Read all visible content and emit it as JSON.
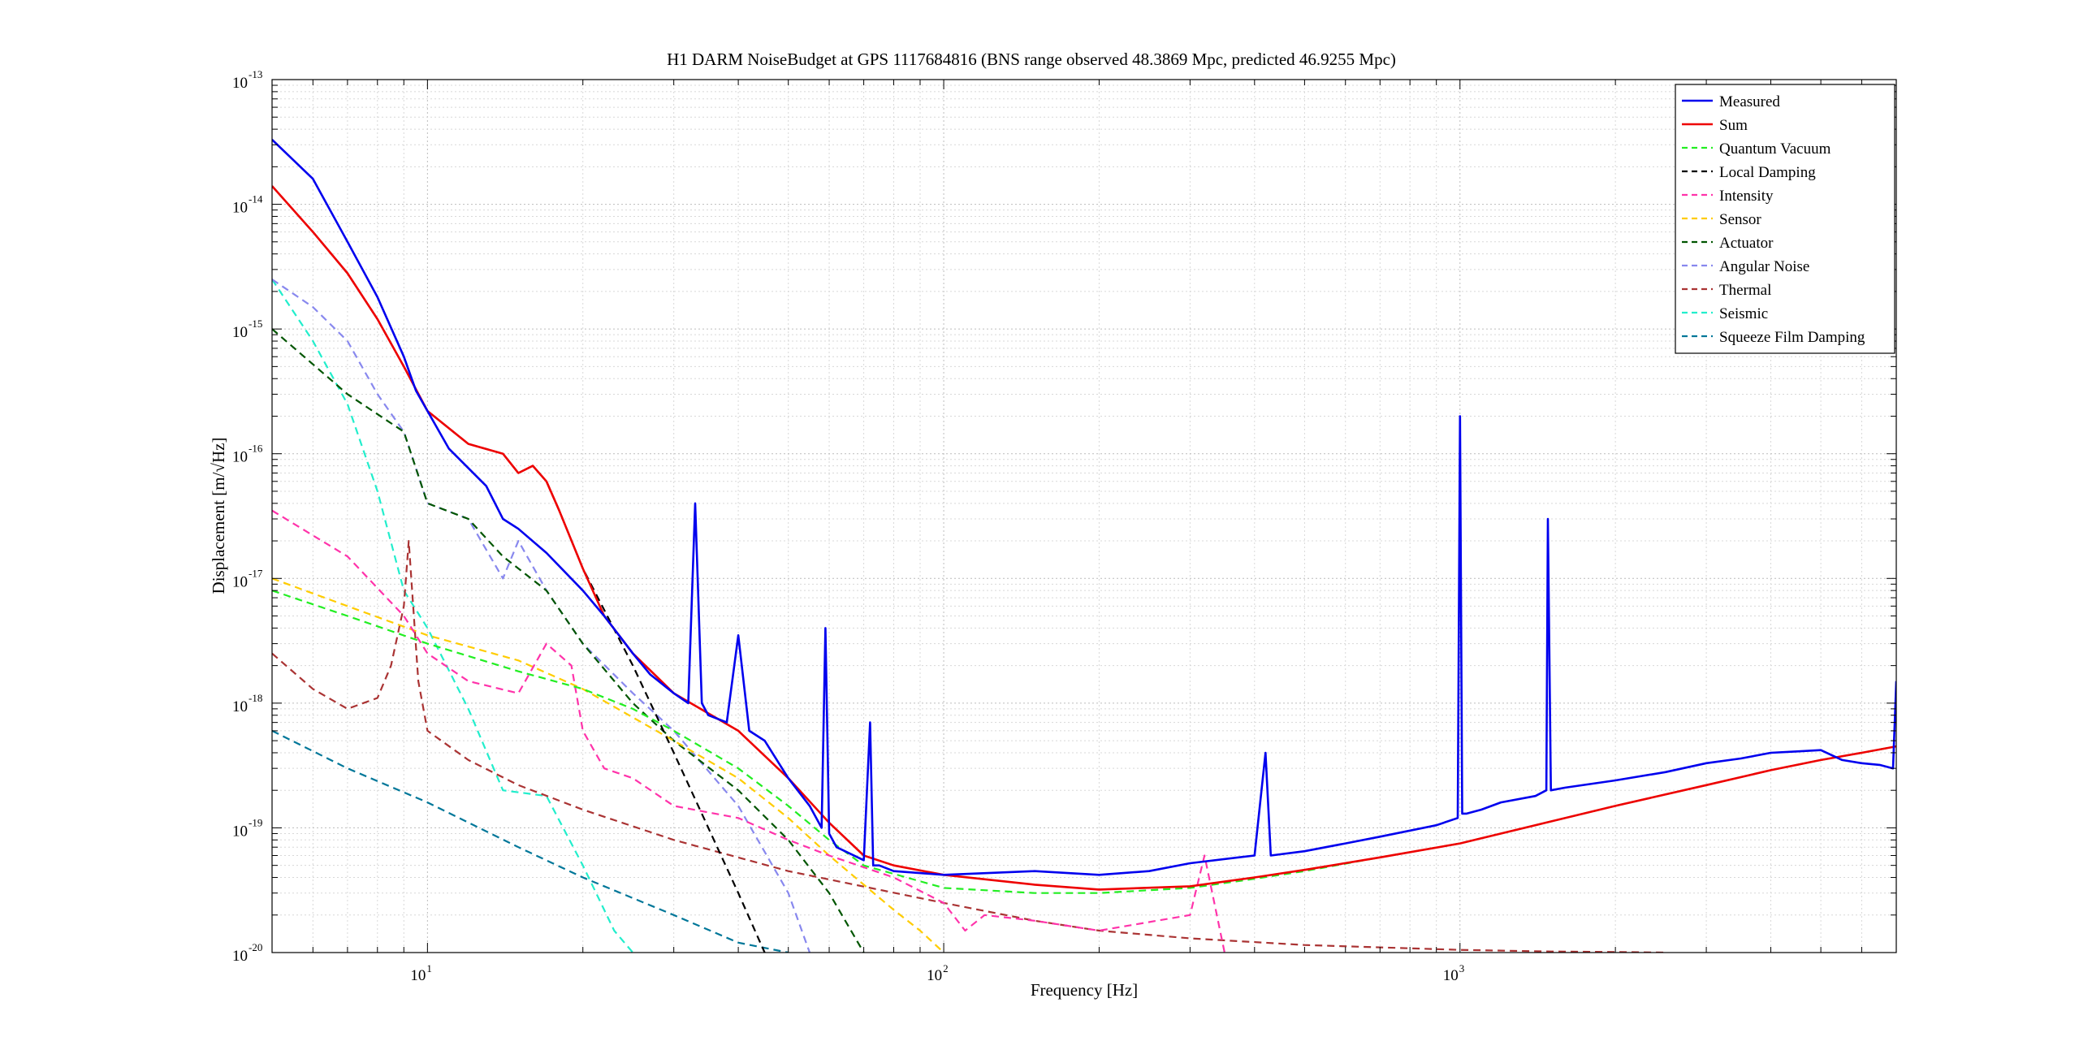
{
  "chart_data": {
    "type": "line",
    "title": "H1 DARM NoiseBudget at GPS 1117684816 (BNS range observed 48.3869 Mpc, predicted 46.9255 Mpc)",
    "xlabel": "Frequency [Hz]",
    "ylabel": "Displacement [m/√Hz]",
    "xscale": "log",
    "yscale": "log",
    "xlim": [
      5,
      7000
    ],
    "ylim": [
      1e-20,
      1e-13
    ],
    "grid": true,
    "legend_position": "top-right",
    "x_ticks": [
      {
        "base": "10",
        "exp": "1",
        "value": 10
      },
      {
        "base": "10",
        "exp": "2",
        "value": 100
      },
      {
        "base": "10",
        "exp": "3",
        "value": 1000
      }
    ],
    "y_ticks": [
      {
        "base": "10",
        "exp": "-13",
        "value": 1e-13
      },
      {
        "base": "10",
        "exp": "-14",
        "value": 1e-14
      },
      {
        "base": "10",
        "exp": "-15",
        "value": 1e-15
      },
      {
        "base": "10",
        "exp": "-16",
        "value": 1e-16
      },
      {
        "base": "10",
        "exp": "-17",
        "value": 1e-17
      },
      {
        "base": "10",
        "exp": "-18",
        "value": 1e-18
      },
      {
        "base": "10",
        "exp": "-19",
        "value": 1e-19
      },
      {
        "base": "10",
        "exp": "-20",
        "value": 1e-20
      }
    ],
    "series": [
      {
        "name": "Measured",
        "color": "#0000ee",
        "dash": "solid",
        "x": [
          5,
          6,
          7,
          8,
          9,
          9.5,
          10,
          11,
          13,
          14,
          15,
          17,
          20,
          22,
          25,
          27,
          30,
          32,
          33,
          34,
          35,
          38,
          40,
          42,
          45,
          50,
          55,
          58,
          59,
          60,
          62,
          70,
          72,
          73,
          75,
          80,
          100,
          150,
          200,
          250,
          300,
          400,
          420,
          430,
          500,
          600,
          700,
          900,
          990,
          1000,
          1010,
          1030,
          1100,
          1200,
          1400,
          1470,
          1480,
          1500,
          1600,
          2000,
          2500,
          3000,
          3500,
          4000,
          4500,
          5000,
          5500,
          6000,
          6500,
          6900,
          7000
        ],
        "y": [
          3.3e-14,
          1.6e-14,
          5e-15,
          1.8e-15,
          6e-16,
          3.2e-16,
          2.2e-16,
          1.1e-16,
          5.5e-17,
          3e-17,
          2.5e-17,
          1.6e-17,
          8e-18,
          5e-18,
          2.5e-18,
          1.7e-18,
          1.2e-18,
          1e-18,
          4e-17,
          1e-18,
          8e-19,
          7e-19,
          3.5e-18,
          6e-19,
          5e-19,
          2.5e-19,
          1.5e-19,
          1e-19,
          4e-18,
          9e-20,
          7e-20,
          5.5e-20,
          7e-19,
          5e-20,
          5e-20,
          4.5e-20,
          4.2e-20,
          4.5e-20,
          4.2e-20,
          4.5e-20,
          5.2e-20,
          6e-20,
          4e-19,
          6e-20,
          6.5e-20,
          7.5e-20,
          8.5e-20,
          1.05e-19,
          1.2e-19,
          2e-16,
          1.3e-19,
          1.3e-19,
          1.4e-19,
          1.6e-19,
          1.8e-19,
          2e-19,
          3e-17,
          2e-19,
          2.1e-19,
          2.4e-19,
          2.8e-19,
          3.3e-19,
          3.6e-19,
          4e-19,
          4.1e-19,
          4.2e-19,
          3.5e-19,
          3.3e-19,
          3.2e-19,
          3e-19,
          1.5e-18
        ]
      },
      {
        "name": "Sum",
        "color": "#ee0000",
        "dash": "solid",
        "x": [
          5,
          6,
          7,
          8,
          9,
          10,
          12,
          14,
          15,
          16,
          17,
          18,
          20,
          22,
          25,
          30,
          40,
          50,
          60,
          70,
          80,
          100,
          150,
          200,
          300,
          400,
          500,
          700,
          1000,
          2000,
          3000,
          4000,
          5000,
          6000,
          7000
        ],
        "y": [
          1.4e-14,
          6e-15,
          2.8e-15,
          1.2e-15,
          5e-16,
          2.2e-16,
          1.2e-16,
          1e-16,
          7e-17,
          8e-17,
          6e-17,
          3.5e-17,
          1.2e-17,
          5e-18,
          2.5e-18,
          1.2e-18,
          6e-19,
          2.5e-19,
          1.1e-19,
          6e-20,
          5e-20,
          4.2e-20,
          3.5e-20,
          3.2e-20,
          3.4e-20,
          4e-20,
          4.6e-20,
          5.8e-20,
          7.5e-20,
          1.5e-19,
          2.2e-19,
          2.9e-19,
          3.5e-19,
          4e-19,
          4.5e-19
        ]
      },
      {
        "name": "Quantum Vacuum",
        "color": "#22ee22",
        "dash": "dashed",
        "x": [
          5,
          7,
          10,
          15,
          20,
          25,
          30,
          40,
          50,
          60,
          70,
          100,
          150,
          200,
          300,
          400,
          500,
          700,
          1000,
          2000,
          3000,
          4000,
          5000,
          6000,
          7000
        ],
        "y": [
          8e-18,
          5e-18,
          3e-18,
          1.8e-18,
          1.3e-18,
          9e-19,
          6e-19,
          3e-19,
          1.5e-19,
          8e-20,
          5e-20,
          3.3e-20,
          3e-20,
          3e-20,
          3.3e-20,
          3.9e-20,
          4.5e-20,
          5.8e-20,
          7.5e-20,
          1.5e-19,
          2.2e-19,
          2.9e-19,
          3.5e-19,
          4e-19,
          4.5e-19
        ]
      },
      {
        "name": "Local Damping",
        "color": "#000000",
        "dash": "dashed",
        "x": [
          5,
          6,
          7,
          8,
          9,
          10,
          12,
          14,
          15,
          16,
          17,
          18,
          20,
          25,
          30,
          35,
          40,
          45
        ],
        "y": [
          1.4e-14,
          6e-15,
          2.8e-15,
          1.2e-15,
          5e-16,
          2.2e-16,
          1.2e-16,
          1e-16,
          7e-17,
          8e-17,
          6e-17,
          3.5e-17,
          1.2e-17,
          2e-18,
          4e-19,
          1e-19,
          3e-20,
          1e-20
        ]
      },
      {
        "name": "Intensity",
        "color": "#ff33aa",
        "dash": "dashed",
        "x": [
          5,
          7,
          9,
          10,
          12,
          15,
          17,
          19,
          20,
          22,
          25,
          30,
          40,
          50,
          60,
          80,
          100,
          110,
          120,
          150,
          200,
          300,
          320,
          350
        ],
        "y": [
          3.5e-17,
          1.5e-17,
          5e-18,
          2.5e-18,
          1.5e-18,
          1.2e-18,
          3e-18,
          2e-18,
          6e-19,
          3e-19,
          2.5e-19,
          1.5e-19,
          1.2e-19,
          8e-20,
          6e-20,
          4e-20,
          2.5e-20,
          1.5e-20,
          2e-20,
          1.8e-20,
          1.5e-20,
          2e-20,
          6e-20,
          1e-20
        ]
      },
      {
        "name": "Sensor",
        "color": "#ffcc00",
        "dash": "dashed",
        "x": [
          5,
          7,
          10,
          15,
          20,
          30,
          40,
          50,
          60,
          70,
          80,
          90,
          100
        ],
        "y": [
          1e-17,
          6e-18,
          3.5e-18,
          2.2e-18,
          1.3e-18,
          5e-19,
          2.5e-19,
          1.2e-19,
          6e-20,
          3.5e-20,
          2.2e-20,
          1.5e-20,
          1e-20
        ]
      },
      {
        "name": "Actuator",
        "color": "#005500",
        "dash": "dashed",
        "x": [
          5,
          7,
          9,
          10,
          12,
          14,
          17,
          20,
          25,
          30,
          40,
          50,
          60,
          70
        ],
        "y": [
          1e-15,
          3e-16,
          1.5e-16,
          4e-17,
          3e-17,
          1.5e-17,
          8e-18,
          3e-18,
          1e-18,
          5e-19,
          2e-19,
          8e-20,
          3e-20,
          1e-20
        ]
      },
      {
        "name": "Angular Noise",
        "color": "#8888ee",
        "dash": "dashed",
        "x": [
          5,
          6,
          7,
          8,
          9,
          10,
          12,
          14,
          15,
          17,
          20,
          25,
          30,
          40,
          50,
          55
        ],
        "y": [
          2.5e-15,
          1.5e-15,
          8e-16,
          3e-16,
          1.5e-16,
          4e-17,
          3e-17,
          1e-17,
          2e-17,
          8e-18,
          3e-18,
          1.2e-18,
          6e-19,
          1.5e-19,
          3e-20,
          1e-20
        ]
      },
      {
        "name": "Thermal",
        "color": "#aa3333",
        "dash": "dashed",
        "x": [
          5,
          6,
          7,
          8,
          8.5,
          9,
          9.2,
          9.6,
          10,
          12,
          15,
          20,
          30,
          50,
          100,
          150,
          200,
          300,
          500,
          1000,
          1500,
          2000,
          2500
        ],
        "y": [
          2.5e-18,
          1.3e-18,
          9e-19,
          1.1e-18,
          2e-18,
          6e-18,
          2e-17,
          1.5e-18,
          6e-19,
          3.5e-19,
          2.2e-19,
          1.4e-19,
          8e-20,
          4.5e-20,
          2.5e-20,
          1.8e-20,
          1.5e-20,
          1.3e-20,
          1.15e-20,
          1.05e-20,
          1.02e-20,
          1.01e-20,
          1e-20
        ]
      },
      {
        "name": "Seismic",
        "color": "#22eecc",
        "dash": "dashed",
        "x": [
          5,
          6,
          7,
          8,
          9,
          10,
          12,
          14,
          17,
          20,
          23,
          25
        ],
        "y": [
          2.5e-15,
          8e-16,
          2.5e-16,
          5e-17,
          8e-18,
          4e-18,
          9e-19,
          2e-19,
          1.8e-19,
          5e-20,
          1.5e-20,
          1e-20
        ]
      },
      {
        "name": "Squeeze Film Damping",
        "color": "#007799",
        "dash": "dashed",
        "x": [
          5,
          7,
          10,
          15,
          20,
          30,
          40,
          50
        ],
        "y": [
          6e-19,
          3e-19,
          1.6e-19,
          7e-20,
          4e-20,
          2e-20,
          1.2e-20,
          1e-20
        ]
      }
    ]
  }
}
